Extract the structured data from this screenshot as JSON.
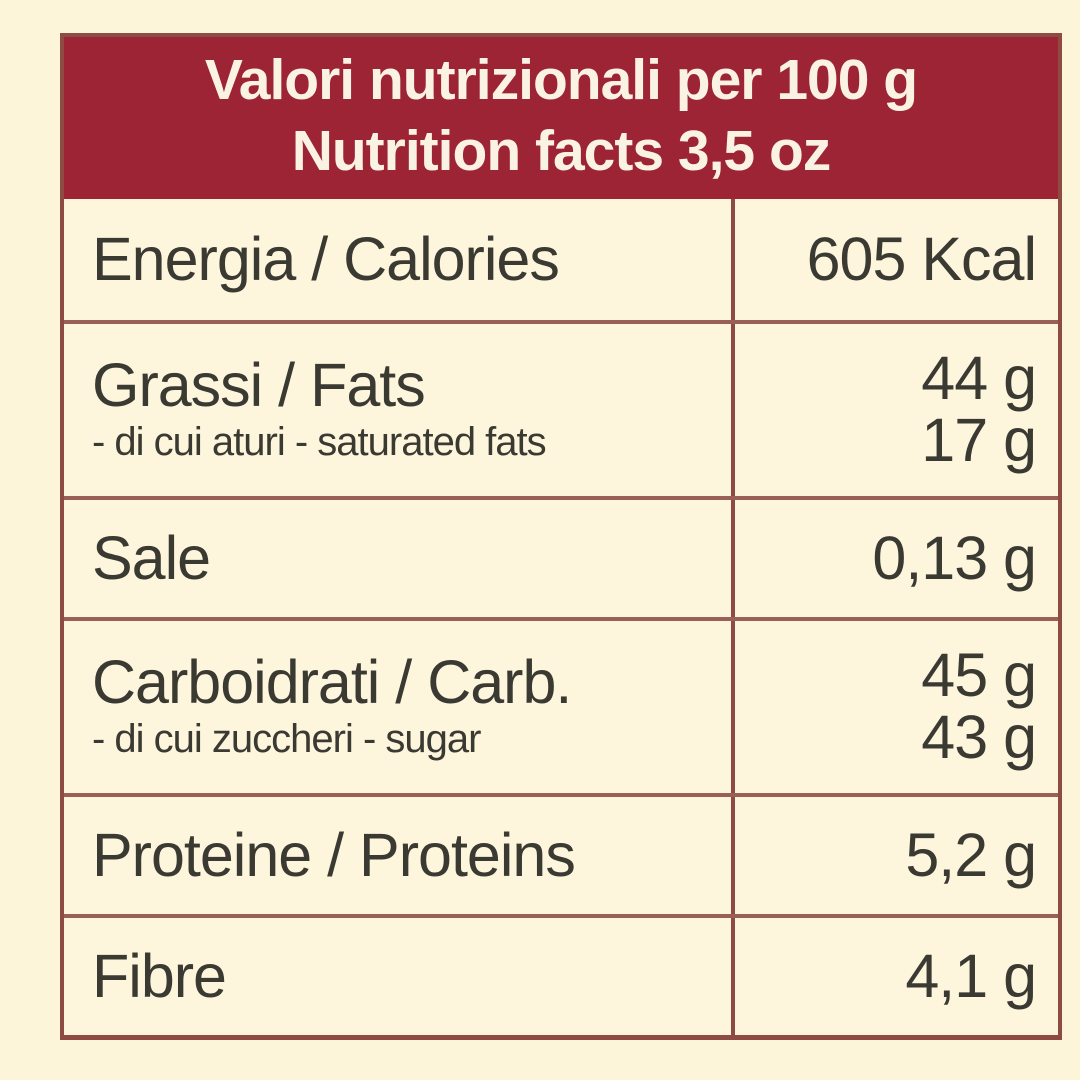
{
  "colors": {
    "page_bg": "#fcf5da",
    "header_bg": "#9c2434",
    "header_text": "#faf2e2",
    "cell_bg": "#fdf6dd",
    "border": "#8e4b43",
    "row_divider": "#9a6055",
    "text": "#3a3a33"
  },
  "header": {
    "line1": "Valori nutrizionali per 100 g",
    "line2": "Nutrition facts 3,5 oz"
  },
  "rows": [
    {
      "label": "Energia / Calories",
      "value": "605 Kcal"
    },
    {
      "label": "Grassi / Fats",
      "sub_label": "- di cui aturi - saturated fats",
      "value": "44 g",
      "sub_value": "17 g"
    },
    {
      "label": "Sale",
      "value": "0,13 g"
    },
    {
      "label": "Carboidrati / Carb.",
      "sub_label": "- di cui zuccheri - sugar",
      "value": "45 g",
      "sub_value": "43 g"
    },
    {
      "label": "Proteine / Proteins",
      "value": "5,2 g"
    },
    {
      "label": "Fibre",
      "value": "4,1 g"
    }
  ]
}
